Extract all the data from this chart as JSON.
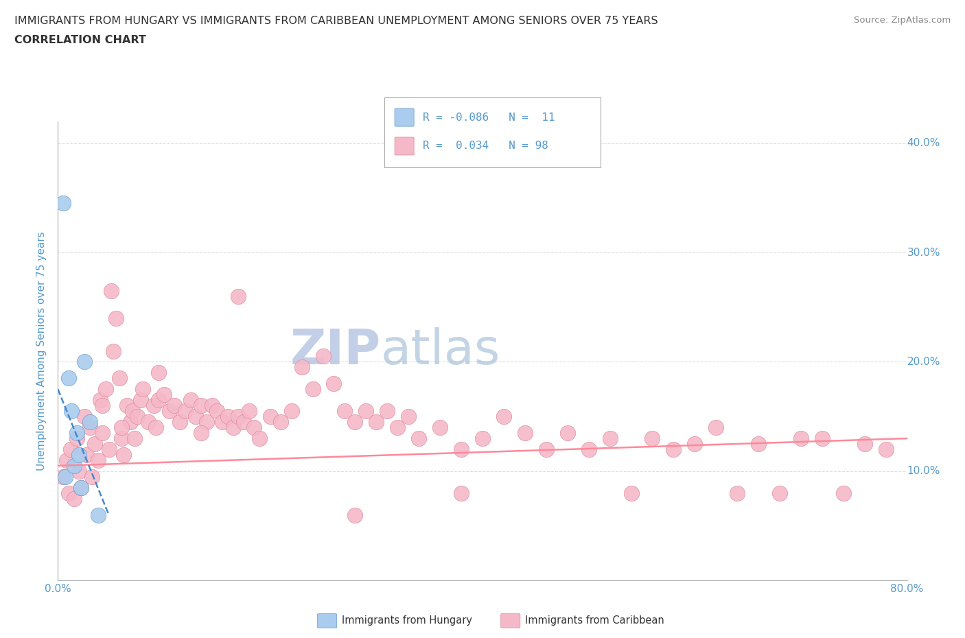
{
  "title_line1": "IMMIGRANTS FROM HUNGARY VS IMMIGRANTS FROM CARIBBEAN UNEMPLOYMENT AMONG SENIORS OVER 75 YEARS",
  "title_line2": "CORRELATION CHART",
  "source_text": "Source: ZipAtlas.com",
  "ylabel": "Unemployment Among Seniors over 75 years",
  "xlim": [
    0,
    0.8
  ],
  "ylim": [
    0,
    0.42
  ],
  "xticks": [
    0.0,
    0.1,
    0.2,
    0.3,
    0.4,
    0.5,
    0.6,
    0.7,
    0.8
  ],
  "xticklabels": [
    "0.0%",
    "",
    "",
    "",
    "",
    "",
    "",
    "",
    "80.0%"
  ],
  "yticks": [
    0.0,
    0.1,
    0.2,
    0.3,
    0.4
  ],
  "yticklabels_right": [
    "",
    "10.0%",
    "20.0%",
    "30.0%",
    "40.0%"
  ],
  "watermark_part1": "ZIP",
  "watermark_part2": "atlas",
  "legend_label_hungary": "R = -0.086   N =  11",
  "legend_label_caribbean": "R =  0.034   N = 98",
  "hungary_color": "#aaccee",
  "caribbean_color": "#f5b8c8",
  "hungary_edge": "#6699cc",
  "caribbean_edge": "#dd8899",
  "background_color": "#ffffff",
  "grid_color": "#dddddd",
  "title_color": "#333333",
  "axis_color": "#5599cc",
  "watermark_color1": "#aabbdd",
  "watermark_color2": "#88aacc",
  "trendline_hungary_color": "#4488cc",
  "trendline_caribbean_color": "#ff8899",
  "hungary_x": [
    0.005,
    0.007,
    0.01,
    0.013,
    0.015,
    0.018,
    0.02,
    0.022,
    0.025,
    0.03,
    0.038
  ],
  "hungary_y": [
    0.345,
    0.095,
    0.185,
    0.155,
    0.105,
    0.135,
    0.115,
    0.085,
    0.2,
    0.145,
    0.06
  ],
  "caribbean_x": [
    0.005,
    0.008,
    0.01,
    0.012,
    0.015,
    0.018,
    0.02,
    0.022,
    0.025,
    0.027,
    0.03,
    0.032,
    0.035,
    0.038,
    0.04,
    0.042,
    0.045,
    0.048,
    0.05,
    0.052,
    0.055,
    0.058,
    0.06,
    0.062,
    0.065,
    0.068,
    0.07,
    0.072,
    0.075,
    0.078,
    0.08,
    0.085,
    0.09,
    0.092,
    0.095,
    0.1,
    0.105,
    0.11,
    0.115,
    0.12,
    0.125,
    0.13,
    0.135,
    0.14,
    0.145,
    0.15,
    0.155,
    0.16,
    0.165,
    0.17,
    0.175,
    0.18,
    0.185,
    0.19,
    0.2,
    0.21,
    0.22,
    0.23,
    0.24,
    0.25,
    0.26,
    0.27,
    0.28,
    0.29,
    0.3,
    0.31,
    0.32,
    0.33,
    0.34,
    0.36,
    0.38,
    0.4,
    0.42,
    0.44,
    0.46,
    0.48,
    0.5,
    0.52,
    0.54,
    0.56,
    0.58,
    0.6,
    0.62,
    0.64,
    0.66,
    0.68,
    0.7,
    0.72,
    0.74,
    0.76,
    0.78,
    0.38,
    0.28,
    0.17,
    0.135,
    0.095,
    0.06,
    0.042
  ],
  "caribbean_y": [
    0.095,
    0.11,
    0.08,
    0.12,
    0.075,
    0.13,
    0.1,
    0.085,
    0.15,
    0.115,
    0.14,
    0.095,
    0.125,
    0.11,
    0.165,
    0.135,
    0.175,
    0.12,
    0.265,
    0.21,
    0.24,
    0.185,
    0.13,
    0.115,
    0.16,
    0.145,
    0.155,
    0.13,
    0.15,
    0.165,
    0.175,
    0.145,
    0.16,
    0.14,
    0.165,
    0.17,
    0.155,
    0.16,
    0.145,
    0.155,
    0.165,
    0.15,
    0.16,
    0.145,
    0.16,
    0.155,
    0.145,
    0.15,
    0.14,
    0.15,
    0.145,
    0.155,
    0.14,
    0.13,
    0.15,
    0.145,
    0.155,
    0.195,
    0.175,
    0.205,
    0.18,
    0.155,
    0.145,
    0.155,
    0.145,
    0.155,
    0.14,
    0.15,
    0.13,
    0.14,
    0.12,
    0.13,
    0.15,
    0.135,
    0.12,
    0.135,
    0.12,
    0.13,
    0.08,
    0.13,
    0.12,
    0.125,
    0.14,
    0.08,
    0.125,
    0.08,
    0.13,
    0.13,
    0.08,
    0.125,
    0.12,
    0.08,
    0.06,
    0.26,
    0.135,
    0.19,
    0.14,
    0.16
  ]
}
